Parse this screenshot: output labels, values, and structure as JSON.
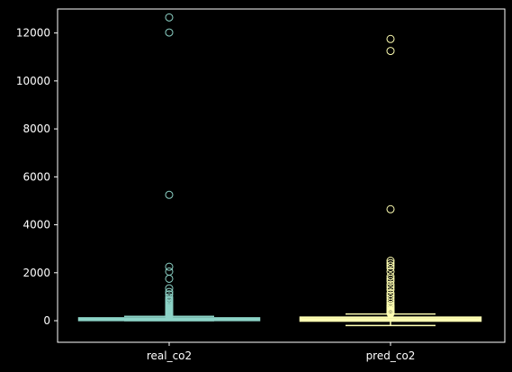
{
  "chart_data": {
    "type": "boxplot",
    "title": "",
    "xlabel": "",
    "ylabel": "",
    "ylim": [
      -900,
      13000
    ],
    "yticks": [
      0,
      2000,
      4000,
      6000,
      8000,
      10000,
      12000
    ],
    "ytick_labels": [
      "0",
      "2000",
      "4000",
      "6000",
      "8000",
      "10000",
      "12000"
    ],
    "categories": [
      "real_co2",
      "pred_co2"
    ],
    "grid": false,
    "colors": {
      "background": "#000000",
      "axes": "#ffffff",
      "text": "#ffffff"
    },
    "series": [
      {
        "category": "real_co2",
        "color": "#8dd3c7",
        "box": {
          "whisker_low": 0,
          "q1": 25,
          "median": 55,
          "q3": 100,
          "whisker_high": 180
        },
        "outliers": [
          12650,
          12020,
          5250,
          2250,
          2050,
          1750,
          1350,
          1200,
          1100,
          980,
          900,
          850,
          800,
          750,
          700,
          650,
          600,
          560,
          520,
          480,
          450,
          420,
          400,
          380,
          360,
          340,
          320,
          300,
          280,
          260,
          240,
          220,
          200
        ]
      },
      {
        "category": "pred_co2",
        "color": "#ffffb3",
        "box": {
          "whisker_low": -200,
          "q1": 0,
          "median": 55,
          "q3": 130,
          "whisker_high": 280
        },
        "outliers": [
          11750,
          11250,
          4650,
          2500,
          2400,
          2300,
          2200,
          2050,
          1850,
          1750,
          1650,
          1500,
          1400,
          1300,
          1150,
          1050,
          950,
          850,
          750,
          650,
          600,
          550,
          500,
          450,
          420,
          400,
          380,
          360,
          340,
          320,
          300
        ]
      }
    ]
  }
}
